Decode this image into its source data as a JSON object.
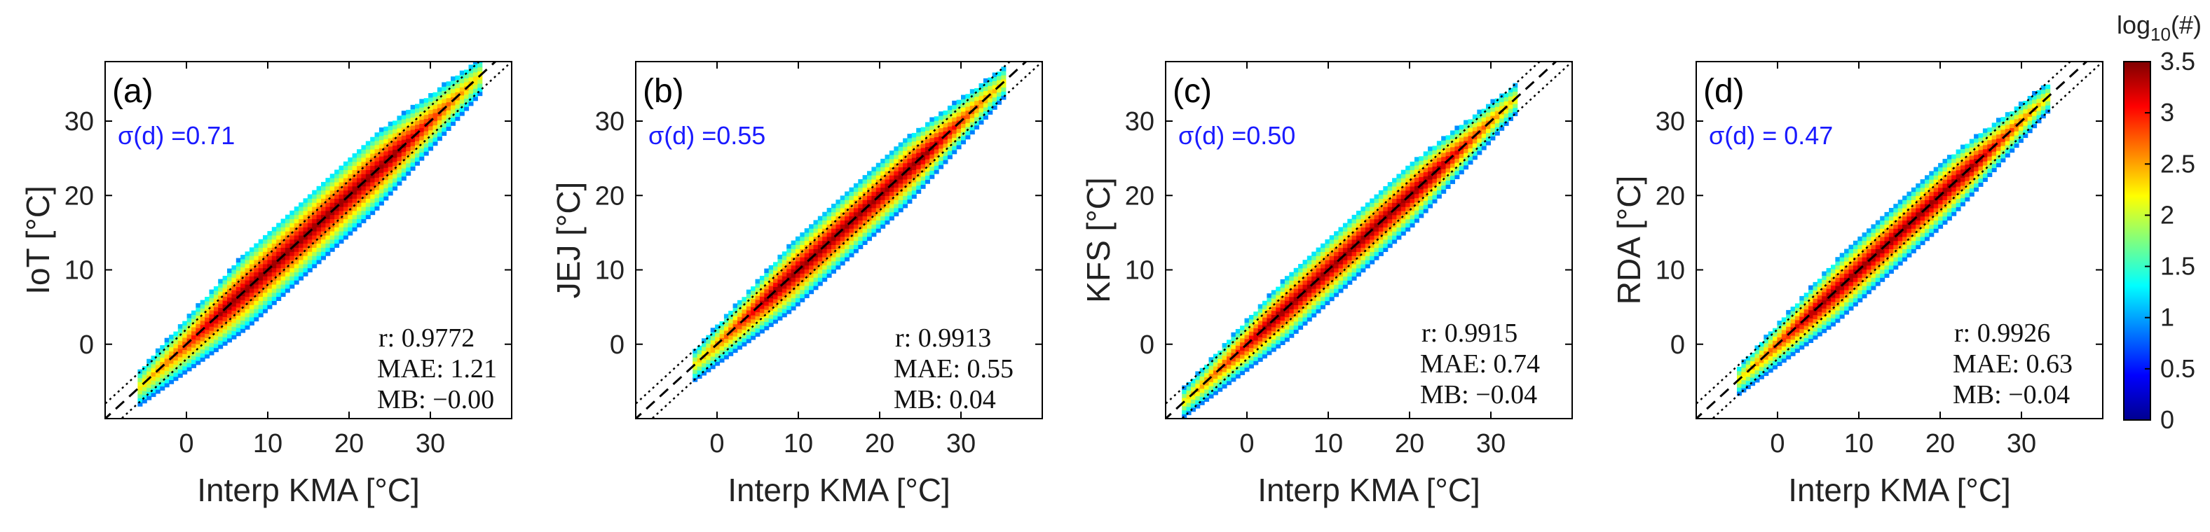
{
  "chart_data": [
    {
      "type": "heatmap",
      "panel_label": "(a)",
      "xlabel": "Interp KMA [°C]",
      "ylabel": "IoT [°C]",
      "xlim": [
        -10,
        40
      ],
      "ylim": [
        -10,
        38
      ],
      "xticks": [
        "0",
        "10",
        "20",
        "30"
      ],
      "yticks": [
        "0",
        "10",
        "20",
        "30"
      ],
      "sigma_text": "σ(d) =0.71",
      "stats": {
        "r": "r:  0.9772",
        "mae": "MAE: 1.21",
        "mb": "MB: −0.00"
      },
      "x_range": [
        -6,
        36
      ],
      "spread": 0.71
    },
    {
      "type": "heatmap",
      "panel_label": "(b)",
      "xlabel": "Interp KMA [°C]",
      "ylabel": "JEJ [°C]",
      "xlim": [
        -10,
        40
      ],
      "ylim": [
        -10,
        38
      ],
      "xticks": [
        "0",
        "10",
        "20",
        "30"
      ],
      "yticks": [
        "0",
        "10",
        "20",
        "30"
      ],
      "sigma_text": "σ(d) =0.55",
      "stats": {
        "r": "r:  0.9913",
        "mae": "MAE: 0.55",
        "mb": "MB: 0.04"
      },
      "x_range": [
        -3,
        35
      ],
      "spread": 0.55
    },
    {
      "type": "heatmap",
      "panel_label": "(c)",
      "xlabel": "Interp KMA [°C]",
      "ylabel": "KFS [°C]",
      "xlim": [
        -10,
        40
      ],
      "ylim": [
        -10,
        38
      ],
      "xticks": [
        "0",
        "10",
        "20",
        "30"
      ],
      "yticks": [
        "0",
        "10",
        "20",
        "30"
      ],
      "sigma_text": "σ(d) =0.50",
      "stats": {
        "r": "r:  0.9915",
        "mae": "MAE: 0.74",
        "mb": "MB: −0.04"
      },
      "x_range": [
        -8,
        33
      ],
      "spread": 0.5
    },
    {
      "type": "heatmap",
      "panel_label": "(d)",
      "xlabel": "Interp KMA [°C]",
      "ylabel": "RDA [°C]",
      "xlim": [
        -10,
        40
      ],
      "ylim": [
        -10,
        38
      ],
      "xticks": [
        "0",
        "10",
        "20",
        "30"
      ],
      "yticks": [
        "0",
        "10",
        "20",
        "30"
      ],
      "sigma_text": "σ(d) = 0.47",
      "stats": {
        "r": "r:  0.9926",
        "mae": "MAE: 0.63",
        "mb": "MB: −0.04"
      },
      "x_range": [
        -5,
        33
      ],
      "spread": 0.47
    }
  ],
  "colorbar": {
    "title": "log",
    "title_sub": "10",
    "title_suffix": "(#)",
    "range": [
      0,
      3.5
    ],
    "ticks": [
      "0",
      "0.5",
      "1",
      "1.5",
      "2",
      "2.5",
      "3",
      "3.5"
    ]
  },
  "colors": {
    "sigma": "#1a1aff",
    "axis": "#000000"
  }
}
